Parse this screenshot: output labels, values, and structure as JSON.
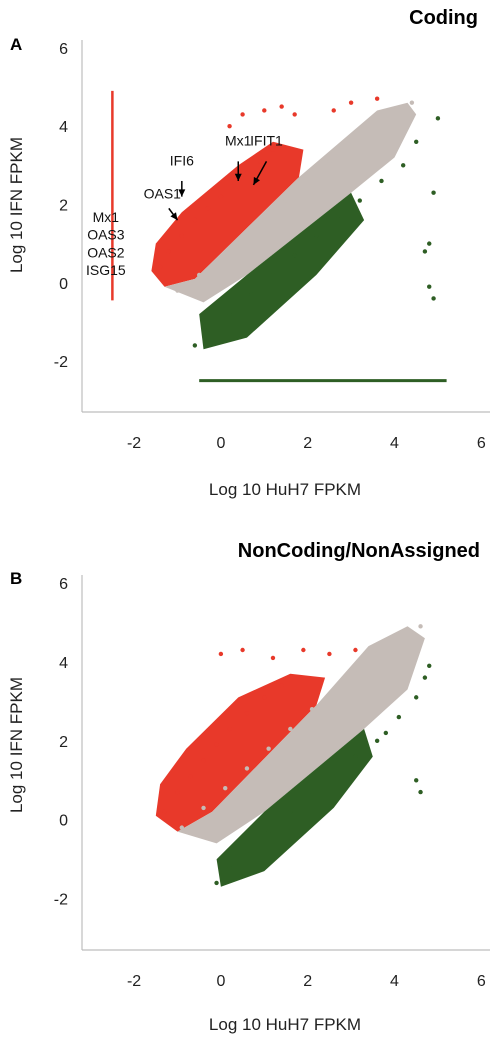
{
  "colors": {
    "up": "#e8392a",
    "neutral": "#c5bcb7",
    "down": "#2e5e24",
    "axis": "#bdbdbd"
  },
  "chart_data": [
    {
      "panel": "A",
      "type": "scatter",
      "title": "Coding",
      "xlabel": "Log 10 HuH7 FPKM",
      "ylabel": "Log 10 IFN FPKM",
      "xlim": [
        -3.2,
        6.2
      ],
      "ylim": [
        -3.3,
        6.2
      ],
      "xticks": [
        "-2",
        "0",
        "2",
        "4",
        "6"
      ],
      "yticks": [
        "-2",
        "0",
        "2",
        "4",
        "6"
      ],
      "xtick_values": [
        -2,
        0,
        2,
        4,
        6
      ],
      "ytick_values": [
        -2,
        0,
        2,
        4,
        6
      ],
      "grid": false,
      "series": [
        {
          "category": "up",
          "values": [
            [
              -1.4,
              0.4
            ],
            [
              -1.2,
              0.8
            ],
            [
              -0.9,
              1.2
            ],
            [
              -0.6,
              1.6
            ],
            [
              -0.3,
              1.9
            ],
            [
              0.0,
              2.2
            ],
            [
              0.3,
              2.5
            ],
            [
              0.6,
              2.8
            ],
            [
              0.9,
              3.1
            ],
            [
              1.2,
              3.4
            ],
            [
              0.2,
              4.0
            ],
            [
              0.5,
              4.3
            ],
            [
              1.0,
              4.4
            ],
            [
              1.4,
              4.5
            ],
            [
              1.7,
              4.3
            ],
            [
              2.6,
              4.4
            ],
            [
              3.0,
              4.6
            ],
            [
              3.6,
              4.7
            ]
          ]
        },
        {
          "category": "neutral",
          "values": [
            [
              -1.0,
              -0.2
            ],
            [
              -0.5,
              0.2
            ],
            [
              0.0,
              0.6
            ],
            [
              0.5,
              1.1
            ],
            [
              1.0,
              1.6
            ],
            [
              1.5,
              2.1
            ],
            [
              2.0,
              2.6
            ],
            [
              2.5,
              3.1
            ],
            [
              3.0,
              3.6
            ],
            [
              3.5,
              4.0
            ],
            [
              4.0,
              4.4
            ],
            [
              4.4,
              4.6
            ]
          ]
        },
        {
          "category": "down",
          "values": [
            [
              -0.6,
              -1.6
            ],
            [
              -0.3,
              -1.2
            ],
            [
              0.2,
              -0.8
            ],
            [
              0.7,
              -0.3
            ],
            [
              1.2,
              0.2
            ],
            [
              1.7,
              0.7
            ],
            [
              2.2,
              1.2
            ],
            [
              2.7,
              1.7
            ],
            [
              3.2,
              2.1
            ],
            [
              3.7,
              2.6
            ],
            [
              4.2,
              3.0
            ],
            [
              4.5,
              3.6
            ],
            [
              4.7,
              0.8
            ],
            [
              4.9,
              2.3
            ],
            [
              4.8,
              -0.1
            ],
            [
              4.9,
              -0.4
            ],
            [
              5.0,
              4.2
            ],
            [
              4.8,
              1.0
            ]
          ]
        }
      ],
      "annotations": [
        {
          "text": "Mx1",
          "x": 0.4,
          "y": 3.5
        },
        {
          "text": "IFIT1",
          "x": 1.05,
          "y": 3.5
        },
        {
          "text": "IFI6",
          "x": -0.9,
          "y": 3.0
        },
        {
          "text": "OAS1",
          "x": -1.35,
          "y": 2.15
        },
        {
          "text": "Mx1",
          "x": -2.65,
          "y": 1.55
        },
        {
          "text": "OAS3",
          "x": -2.65,
          "y": 1.1
        },
        {
          "text": "OAS2",
          "x": -2.65,
          "y": 0.65
        },
        {
          "text": "ISG15",
          "x": -2.65,
          "y": 0.2
        }
      ],
      "bars": {
        "red_vertical_x": -2.5,
        "red_vertical_y": [
          -0.45,
          4.9
        ],
        "green_horizontal_y": -2.5,
        "green_horizontal_x": [
          -0.5,
          5.2
        ]
      }
    },
    {
      "panel": "B",
      "type": "scatter",
      "title": "NonCoding/NonAssigned",
      "xlabel": "Log 10 HuH7 FPKM",
      "ylabel": "Log 10 IFN FPKM",
      "xlim": [
        -3.2,
        6.2
      ],
      "ylim": [
        -3.3,
        6.2
      ],
      "xticks": [
        "-2",
        "0",
        "2",
        "4",
        "6"
      ],
      "yticks": [
        "-2",
        "0",
        "2",
        "4",
        "6"
      ],
      "xtick_values": [
        -2,
        0,
        2,
        4,
        6
      ],
      "ytick_values": [
        -2,
        0,
        2,
        4,
        6
      ],
      "grid": false,
      "series": [
        {
          "category": "up",
          "values": [
            [
              -1.3,
              0.2
            ],
            [
              -1.0,
              0.7
            ],
            [
              -0.7,
              1.1
            ],
            [
              -0.4,
              1.5
            ],
            [
              -0.1,
              1.9
            ],
            [
              0.2,
              2.3
            ],
            [
              0.6,
              2.7
            ],
            [
              1.0,
              3.1
            ],
            [
              1.4,
              3.4
            ],
            [
              1.8,
              3.6
            ],
            [
              0.0,
              4.2
            ],
            [
              0.5,
              4.3
            ],
            [
              1.2,
              4.1
            ],
            [
              1.9,
              4.3
            ],
            [
              2.5,
              4.2
            ],
            [
              3.1,
              4.3
            ]
          ]
        },
        {
          "category": "neutral",
          "values": [
            [
              -0.9,
              -0.2
            ],
            [
              -0.4,
              0.3
            ],
            [
              0.1,
              0.8
            ],
            [
              0.6,
              1.3
            ],
            [
              1.1,
              1.8
            ],
            [
              1.6,
              2.3
            ],
            [
              2.1,
              2.8
            ],
            [
              2.6,
              3.3
            ],
            [
              3.1,
              3.8
            ],
            [
              3.6,
              4.2
            ],
            [
              4.1,
              4.5
            ],
            [
              4.6,
              4.9
            ]
          ]
        },
        {
          "category": "down",
          "values": [
            [
              -0.1,
              -1.6
            ],
            [
              0.2,
              -1.2
            ],
            [
              0.6,
              -0.8
            ],
            [
              1.1,
              -0.3
            ],
            [
              1.6,
              0.2
            ],
            [
              2.1,
              0.7
            ],
            [
              2.6,
              1.1
            ],
            [
              3.1,
              1.6
            ],
            [
              3.6,
              2.0
            ],
            [
              4.1,
              2.6
            ],
            [
              4.5,
              3.1
            ],
            [
              4.7,
              3.6
            ],
            [
              4.5,
              1.0
            ],
            [
              4.6,
              0.7
            ],
            [
              4.8,
              3.9
            ],
            [
              3.8,
              2.2
            ]
          ]
        }
      ],
      "annotations": []
    }
  ]
}
